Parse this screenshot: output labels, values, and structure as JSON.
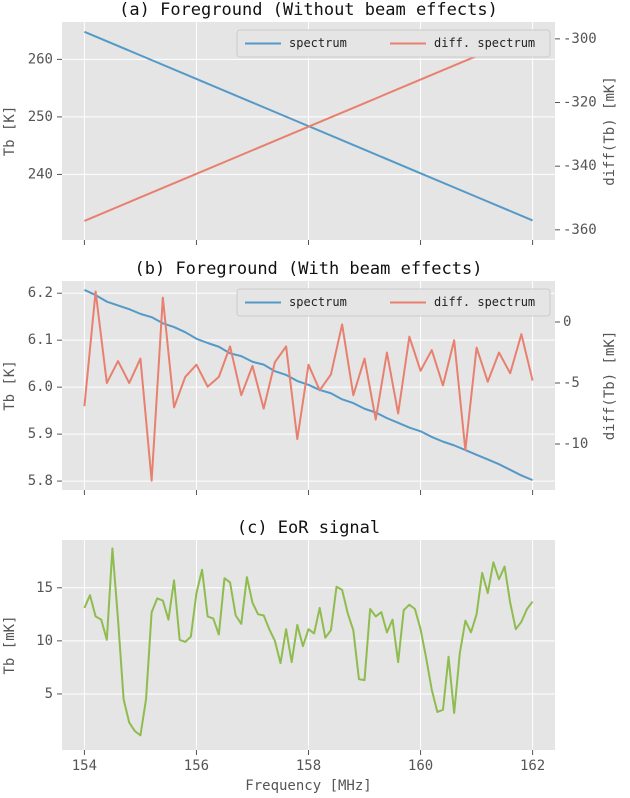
{
  "chart_data": [
    {
      "type": "line",
      "title": "(a) Foreground (Without beam effects)",
      "ylabel": "Tb [K]",
      "y2label": "diff(Tb) [mK]",
      "x": [
        154,
        155,
        156,
        157,
        158,
        159,
        160,
        161,
        162
      ],
      "series": [
        {
          "name": "spectrum",
          "color": "#5599c8",
          "values": [
            264.8,
            260.7,
            256.6,
            252.5,
            248.4,
            244.3,
            240.2,
            236.1,
            232.0
          ]
        },
        {
          "name": "diff. spectrum",
          "color": "#e8806f",
          "axis": "y2",
          "values": [
            -357.2,
            -349.8,
            -342.4,
            -335.0,
            -327.6,
            -320.2,
            -312.8,
            -305.4,
            -298.0
          ]
        }
      ],
      "xlim": [
        153.6,
        162.4
      ],
      "xticks": [
        154,
        156,
        158,
        160,
        162
      ],
      "show_xticklabels": false,
      "ylim": [
        228.6,
        266.5
      ],
      "yticks": [
        240,
        250,
        260
      ],
      "y2lim": [
        -363.2,
        -294.7
      ],
      "y2ticks": [
        -360,
        -340,
        -320,
        -300
      ],
      "grid": true,
      "legend": "upper right"
    },
    {
      "type": "line",
      "title": "(b) Foreground (With beam effects)",
      "ylabel": "Tb [K]",
      "y2label": "diff(Tb) [mK]",
      "x": [
        154.0,
        154.2,
        154.4,
        154.6,
        154.8,
        155.0,
        155.2,
        155.4,
        155.6,
        155.8,
        156.0,
        156.2,
        156.4,
        156.6,
        156.8,
        157.0,
        157.2,
        157.4,
        157.6,
        157.8,
        158.0,
        158.2,
        158.4,
        158.6,
        158.8,
        159.0,
        159.2,
        159.4,
        159.6,
        159.8,
        160.0,
        160.2,
        160.4,
        160.6,
        160.8,
        161.0,
        161.2,
        161.4,
        161.6,
        161.8,
        162.0
      ],
      "series": [
        {
          "name": "spectrum",
          "color": "#5599c8",
          "values": [
            6.207,
            6.196,
            6.182,
            6.174,
            6.166,
            6.156,
            6.149,
            6.136,
            6.128,
            6.117,
            6.103,
            6.094,
            6.086,
            6.072,
            6.066,
            6.054,
            6.048,
            6.034,
            6.026,
            6.013,
            6.005,
            5.994,
            5.987,
            5.974,
            5.966,
            5.954,
            5.946,
            5.934,
            5.924,
            5.914,
            5.906,
            5.894,
            5.884,
            5.876,
            5.866,
            5.856,
            5.846,
            5.836,
            5.824,
            5.812,
            5.802
          ]
        },
        {
          "name": "diff. spectrum",
          "color": "#e8806f",
          "axis": "y2",
          "values": [
            -6.9,
            2.5,
            -5.0,
            -3.2,
            -5.0,
            -3.0,
            -13.0,
            2.0,
            -7.0,
            -4.5,
            -3.5,
            -5.3,
            -4.5,
            -2.0,
            -6.0,
            -3.6,
            -7.1,
            -3.3,
            -2.0,
            -9.6,
            -3.5,
            -5.6,
            -4.3,
            -0.2,
            -6.0,
            -3.0,
            -8.0,
            -2.5,
            -7.5,
            -1.2,
            -4.0,
            -2.3,
            -5.2,
            -1.5,
            -10.5,
            -2.1,
            -4.9,
            -2.5,
            -4.2,
            -1.0,
            -4.8
          ]
        }
      ],
      "xlim": [
        153.6,
        162.4
      ],
      "xticks": [
        154,
        156,
        158,
        160,
        162
      ],
      "show_xticklabels": false,
      "ylim": [
        5.781,
        6.226
      ],
      "yticks": [
        5.8,
        5.9,
        {
          "value": 6,
          "label": "6.0"
        },
        6.1,
        6.2
      ],
      "y2lim": [
        -13.77,
        3.36
      ],
      "y2ticks": [
        -10,
        -5,
        0
      ],
      "grid": true,
      "legend": "upper right"
    },
    {
      "type": "line",
      "title": "(c) EoR signal",
      "ylabel": "Tb [mK]",
      "xlabel": "Frequency [MHz]",
      "x": [
        154.0,
        154.1,
        154.2,
        154.3,
        154.4,
        154.5,
        154.6,
        154.7,
        154.8,
        154.9,
        155.0,
        155.1,
        155.2,
        155.3,
        155.4,
        155.5,
        155.6,
        155.7,
        155.8,
        155.9,
        156.0,
        156.1,
        156.2,
        156.3,
        156.4,
        156.5,
        156.6,
        156.7,
        156.8,
        156.9,
        157.0,
        157.1,
        157.2,
        157.3,
        157.4,
        157.5,
        157.6,
        157.7,
        157.8,
        157.9,
        158.0,
        158.1,
        158.2,
        158.3,
        158.4,
        158.5,
        158.6,
        158.7,
        158.8,
        158.9,
        159.0,
        159.1,
        159.2,
        159.3,
        159.4,
        159.5,
        159.6,
        159.7,
        159.8,
        159.9,
        160.0,
        160.1,
        160.2,
        160.3,
        160.4,
        160.5,
        160.6,
        160.7,
        160.8,
        160.9,
        161.0,
        161.1,
        161.2,
        161.3,
        161.4,
        161.5,
        161.6,
        161.7,
        161.8,
        161.9,
        162.0
      ],
      "series": [
        {
          "name": "EoR signal",
          "color": "#8fbc4f",
          "values": [
            13.1,
            14.3,
            12.3,
            12.0,
            10.1,
            18.7,
            12.0,
            4.5,
            2.3,
            1.5,
            1.1,
            4.5,
            12.7,
            14.0,
            13.8,
            12.0,
            15.7,
            10.1,
            9.9,
            10.4,
            14.5,
            16.7,
            12.3,
            12.1,
            10.6,
            15.9,
            15.5,
            12.4,
            11.6,
            16.0,
            13.6,
            12.5,
            12.4,
            11.1,
            10.0,
            7.9,
            11.1,
            8.0,
            11.5,
            9.5,
            11.1,
            10.7,
            13.1,
            10.3,
            11.0,
            15.1,
            14.8,
            12.6,
            11.0,
            6.4,
            6.3,
            13.0,
            12.3,
            12.7,
            10.8,
            12.0,
            8.0,
            12.9,
            13.4,
            13.0,
            11.1,
            8.4,
            5.4,
            3.3,
            3.5,
            8.5,
            3.2,
            8.8,
            11.9,
            10.8,
            12.5,
            16.4,
            14.5,
            17.4,
            15.8,
            17.0,
            13.6,
            11.1,
            11.8,
            13.0,
            13.7
          ]
        }
      ],
      "xlim": [
        153.6,
        162.4
      ],
      "xticks": [
        154,
        156,
        158,
        160,
        162
      ],
      "show_xticklabels": true,
      "ylim": [
        -0.28,
        19.5
      ],
      "yticks": [
        5,
        10,
        15
      ],
      "grid": true
    }
  ]
}
